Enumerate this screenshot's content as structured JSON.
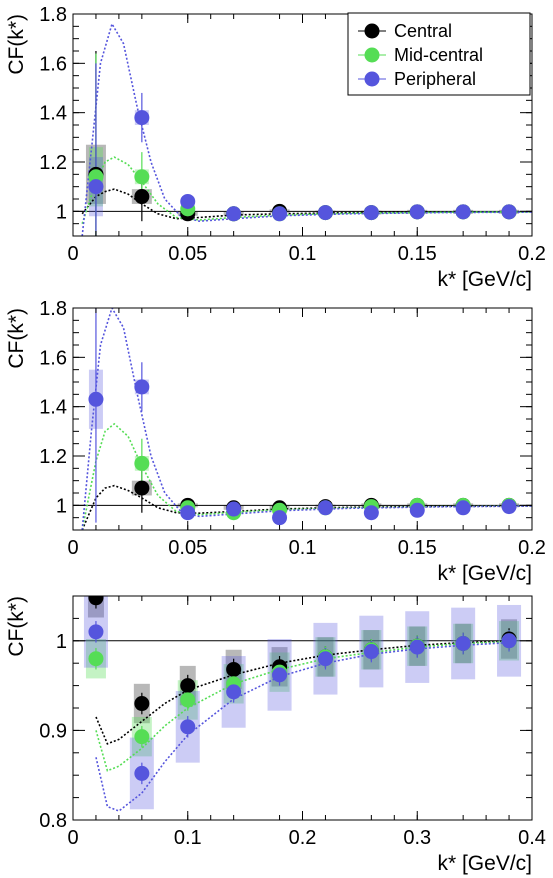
{
  "legend": {
    "entries": [
      {
        "label": "Central",
        "color": "#000000"
      },
      {
        "label": "Mid-central",
        "color": "#55dd55"
      },
      {
        "label": "Peripheral",
        "color": "#5555dd"
      }
    ]
  },
  "chart_data": [
    {
      "type": "scatter",
      "title": "",
      "xlabel": "k* [GeV/c]",
      "ylabel": "CF(k*)",
      "xlim": [
        0,
        0.2
      ],
      "ylim": [
        0.9,
        1.8
      ],
      "xticks": [
        0,
        0.05,
        0.1,
        0.15,
        0.2
      ],
      "xtick_labels": [
        "0",
        "0.05",
        "0.1",
        "0.15",
        "0.2"
      ],
      "yticks": [
        1,
        1.2,
        1.4,
        1.6,
        1.8
      ],
      "ytick_labels": [
        "1",
        "1.2",
        "1.4",
        "1.6",
        "1.8"
      ],
      "reference_line": 1,
      "legend_position": "top-right",
      "grid": false,
      "series": [
        {
          "color": "#000000",
          "x": [
            0.01,
            0.03,
            0.05,
            0.07,
            0.09,
            0.11,
            0.13,
            0.15,
            0.17,
            0.19
          ],
          "y": [
            1.15,
            1.06,
            0.99,
            0.99,
            1.0,
            0.995,
            0.995,
            0.998,
            0.998,
            0.998
          ],
          "fit": [
            [
              0.004,
              0.99
            ],
            [
              0.01,
              1.06
            ],
            [
              0.014,
              1.08
            ],
            [
              0.018,
              1.09
            ],
            [
              0.024,
              1.07
            ],
            [
              0.03,
              1.03
            ],
            [
              0.037,
              0.99
            ],
            [
              0.045,
              0.97
            ],
            [
              0.055,
              0.975
            ],
            [
              0.07,
              0.985
            ],
            [
              0.09,
              0.99
            ],
            [
              0.12,
              0.995
            ],
            [
              0.16,
              0.997
            ],
            [
              0.2,
              0.998
            ]
          ]
        },
        {
          "color": "#55dd55",
          "x": [
            0.01,
            0.03,
            0.05,
            0.07,
            0.09,
            0.11,
            0.13,
            0.15,
            0.17,
            0.19
          ],
          "y": [
            1.14,
            1.14,
            1.01,
            0.99,
            0.99,
            0.995,
            0.995,
            0.998,
            0.998,
            0.998
          ],
          "fit": [
            [
              0.004,
              0.95
            ],
            [
              0.01,
              1.12
            ],
            [
              0.014,
              1.2
            ],
            [
              0.018,
              1.22
            ],
            [
              0.024,
              1.19
            ],
            [
              0.03,
              1.12
            ],
            [
              0.037,
              1.03
            ],
            [
              0.045,
              0.975
            ],
            [
              0.055,
              0.965
            ],
            [
              0.07,
              0.975
            ],
            [
              0.09,
              0.985
            ],
            [
              0.12,
              0.992
            ],
            [
              0.16,
              0.996
            ],
            [
              0.2,
              0.998
            ]
          ]
        },
        {
          "color": "#5555dd",
          "x": [
            0.01,
            0.03,
            0.05,
            0.07,
            0.09,
            0.11,
            0.13,
            0.15,
            0.17,
            0.19
          ],
          "y": [
            1.1,
            1.38,
            1.04,
            0.99,
            0.99,
            0.995,
            0.995,
            0.998,
            0.998,
            0.998
          ],
          "fit": [
            [
              0.004,
              0.9
            ],
            [
              0.008,
              1.25
            ],
            [
              0.012,
              1.6
            ],
            [
              0.017,
              1.76
            ],
            [
              0.022,
              1.68
            ],
            [
              0.028,
              1.42
            ],
            [
              0.034,
              1.2
            ],
            [
              0.04,
              1.05
            ],
            [
              0.047,
              0.98
            ],
            [
              0.055,
              0.96
            ],
            [
              0.07,
              0.97
            ],
            [
              0.09,
              0.982
            ],
            [
              0.12,
              0.99
            ],
            [
              0.16,
              0.995
            ],
            [
              0.2,
              0.997
            ]
          ]
        }
      ]
    },
    {
      "type": "scatter",
      "title": "",
      "xlabel": "k* [GeV/c]",
      "ylabel": "CF(k*)",
      "xlim": [
        0,
        0.2
      ],
      "ylim": [
        0.9,
        1.8
      ],
      "xticks": [
        0,
        0.05,
        0.1,
        0.15,
        0.2
      ],
      "xtick_labels": [
        "0",
        "0.05",
        "0.1",
        "0.15",
        "0.2"
      ],
      "yticks": [
        1,
        1.2,
        1.4,
        1.6,
        1.8
      ],
      "ytick_labels": [
        "1",
        "1.2",
        "1.4",
        "1.6",
        "1.8"
      ],
      "reference_line": 1,
      "grid": false,
      "series": [
        {
          "color": "#000000",
          "x": [
            0.03,
            0.05,
            0.07,
            0.09,
            0.11,
            0.13,
            0.15,
            0.17,
            0.19
          ],
          "y": [
            1.07,
            1.0,
            0.99,
            0.99,
            0.995,
            1.0,
            1.0,
            1.0,
            1.0
          ],
          "fit": [
            [
              0.004,
              0.9
            ],
            [
              0.01,
              1.03
            ],
            [
              0.014,
              1.07
            ],
            [
              0.018,
              1.08
            ],
            [
              0.024,
              1.06
            ],
            [
              0.03,
              1.03
            ],
            [
              0.037,
              0.99
            ],
            [
              0.045,
              0.97
            ],
            [
              0.055,
              0.968
            ],
            [
              0.07,
              0.975
            ],
            [
              0.09,
              0.985
            ],
            [
              0.12,
              0.992
            ],
            [
              0.16,
              0.996
            ],
            [
              0.2,
              0.998
            ]
          ]
        },
        {
          "color": "#55dd55",
          "x": [
            0.03,
            0.05,
            0.07,
            0.09,
            0.11,
            0.13,
            0.15,
            0.17,
            0.19
          ],
          "y": [
            1.17,
            0.99,
            0.97,
            0.98,
            0.99,
            0.995,
            1.0,
            1.0,
            1.0
          ],
          "fit": [
            [
              0.004,
              0.9
            ],
            [
              0.01,
              1.18
            ],
            [
              0.014,
              1.3
            ],
            [
              0.018,
              1.33
            ],
            [
              0.024,
              1.28
            ],
            [
              0.03,
              1.16
            ],
            [
              0.037,
              1.04
            ],
            [
              0.045,
              0.975
            ],
            [
              0.055,
              0.962
            ],
            [
              0.07,
              0.972
            ],
            [
              0.09,
              0.982
            ],
            [
              0.12,
              0.99
            ],
            [
              0.16,
              0.995
            ],
            [
              0.2,
              0.998
            ]
          ]
        },
        {
          "color": "#5555dd",
          "x": [
            0.01,
            0.03,
            0.05,
            0.07,
            0.09,
            0.11,
            0.13,
            0.15,
            0.17,
            0.19
          ],
          "y": [
            1.43,
            1.48,
            0.97,
            0.985,
            0.95,
            0.99,
            0.97,
            0.98,
            0.99,
            0.995
          ],
          "fit": [
            [
              0.004,
              0.9
            ],
            [
              0.008,
              1.3
            ],
            [
              0.012,
              1.65
            ],
            [
              0.017,
              1.8
            ],
            [
              0.022,
              1.72
            ],
            [
              0.028,
              1.45
            ],
            [
              0.034,
              1.2
            ],
            [
              0.04,
              1.05
            ],
            [
              0.047,
              0.975
            ],
            [
              0.055,
              0.955
            ],
            [
              0.07,
              0.965
            ],
            [
              0.09,
              0.978
            ],
            [
              0.12,
              0.988
            ],
            [
              0.16,
              0.994
            ],
            [
              0.2,
              0.997
            ]
          ]
        }
      ]
    },
    {
      "type": "scatter",
      "title": "",
      "xlabel": "k* [GeV/c]",
      "ylabel": "CF(k*)",
      "xlim": [
        0,
        0.4
      ],
      "ylim": [
        0.8,
        1.05
      ],
      "xticks": [
        0,
        0.1,
        0.2,
        0.3,
        0.4
      ],
      "xtick_labels": [
        "0",
        "0.1",
        "0.2",
        "0.3",
        "0.4"
      ],
      "yticks": [
        0.8,
        0.9,
        1
      ],
      "ytick_labels": [
        "0.8",
        "0.9",
        "1"
      ],
      "reference_line": 1,
      "grid": false,
      "series": [
        {
          "color": "#000000",
          "x": [
            0.02,
            0.06,
            0.1,
            0.14,
            0.18,
            0.22,
            0.26,
            0.3,
            0.34,
            0.38
          ],
          "y": [
            1.048,
            0.93,
            0.95,
            0.968,
            0.971,
            0.982,
            0.99,
            0.994,
            0.997,
            1.002
          ],
          "fit": [
            [
              0.02,
              0.915
            ],
            [
              0.03,
              0.885
            ],
            [
              0.04,
              0.89
            ],
            [
              0.06,
              0.91
            ],
            [
              0.08,
              0.93
            ],
            [
              0.1,
              0.945
            ],
            [
              0.14,
              0.962
            ],
            [
              0.18,
              0.975
            ],
            [
              0.22,
              0.984
            ],
            [
              0.26,
              0.99
            ],
            [
              0.3,
              0.995
            ],
            [
              0.34,
              0.998
            ],
            [
              0.38,
              1.0
            ]
          ]
        },
        {
          "color": "#55dd55",
          "x": [
            0.02,
            0.06,
            0.1,
            0.14,
            0.18,
            0.22,
            0.26,
            0.3,
            0.34,
            0.38
          ],
          "y": [
            0.98,
            0.893,
            0.934,
            0.952,
            0.965,
            0.982,
            0.99,
            0.994,
            0.997,
            1.0
          ],
          "fit": [
            [
              0.02,
              0.9
            ],
            [
              0.03,
              0.855
            ],
            [
              0.04,
              0.86
            ],
            [
              0.06,
              0.88
            ],
            [
              0.08,
              0.905
            ],
            [
              0.1,
              0.925
            ],
            [
              0.14,
              0.952
            ],
            [
              0.18,
              0.968
            ],
            [
              0.22,
              0.98
            ],
            [
              0.26,
              0.987
            ],
            [
              0.3,
              0.993
            ],
            [
              0.34,
              0.997
            ],
            [
              0.38,
              0.999
            ]
          ]
        },
        {
          "color": "#5555dd",
          "x": [
            0.02,
            0.06,
            0.1,
            0.14,
            0.18,
            0.22,
            0.26,
            0.3,
            0.34,
            0.38
          ],
          "y": [
            1.01,
            0.852,
            0.904,
            0.943,
            0.962,
            0.98,
            0.988,
            0.993,
            0.997,
            1.0
          ],
          "fit": [
            [
              0.02,
              0.87
            ],
            [
              0.03,
              0.815
            ],
            [
              0.04,
              0.81
            ],
            [
              0.06,
              0.83
            ],
            [
              0.08,
              0.865
            ],
            [
              0.1,
              0.895
            ],
            [
              0.14,
              0.935
            ],
            [
              0.18,
              0.96
            ],
            [
              0.22,
              0.975
            ],
            [
              0.26,
              0.985
            ],
            [
              0.3,
              0.991
            ],
            [
              0.34,
              0.995
            ],
            [
              0.38,
              0.998
            ]
          ]
        }
      ]
    }
  ]
}
